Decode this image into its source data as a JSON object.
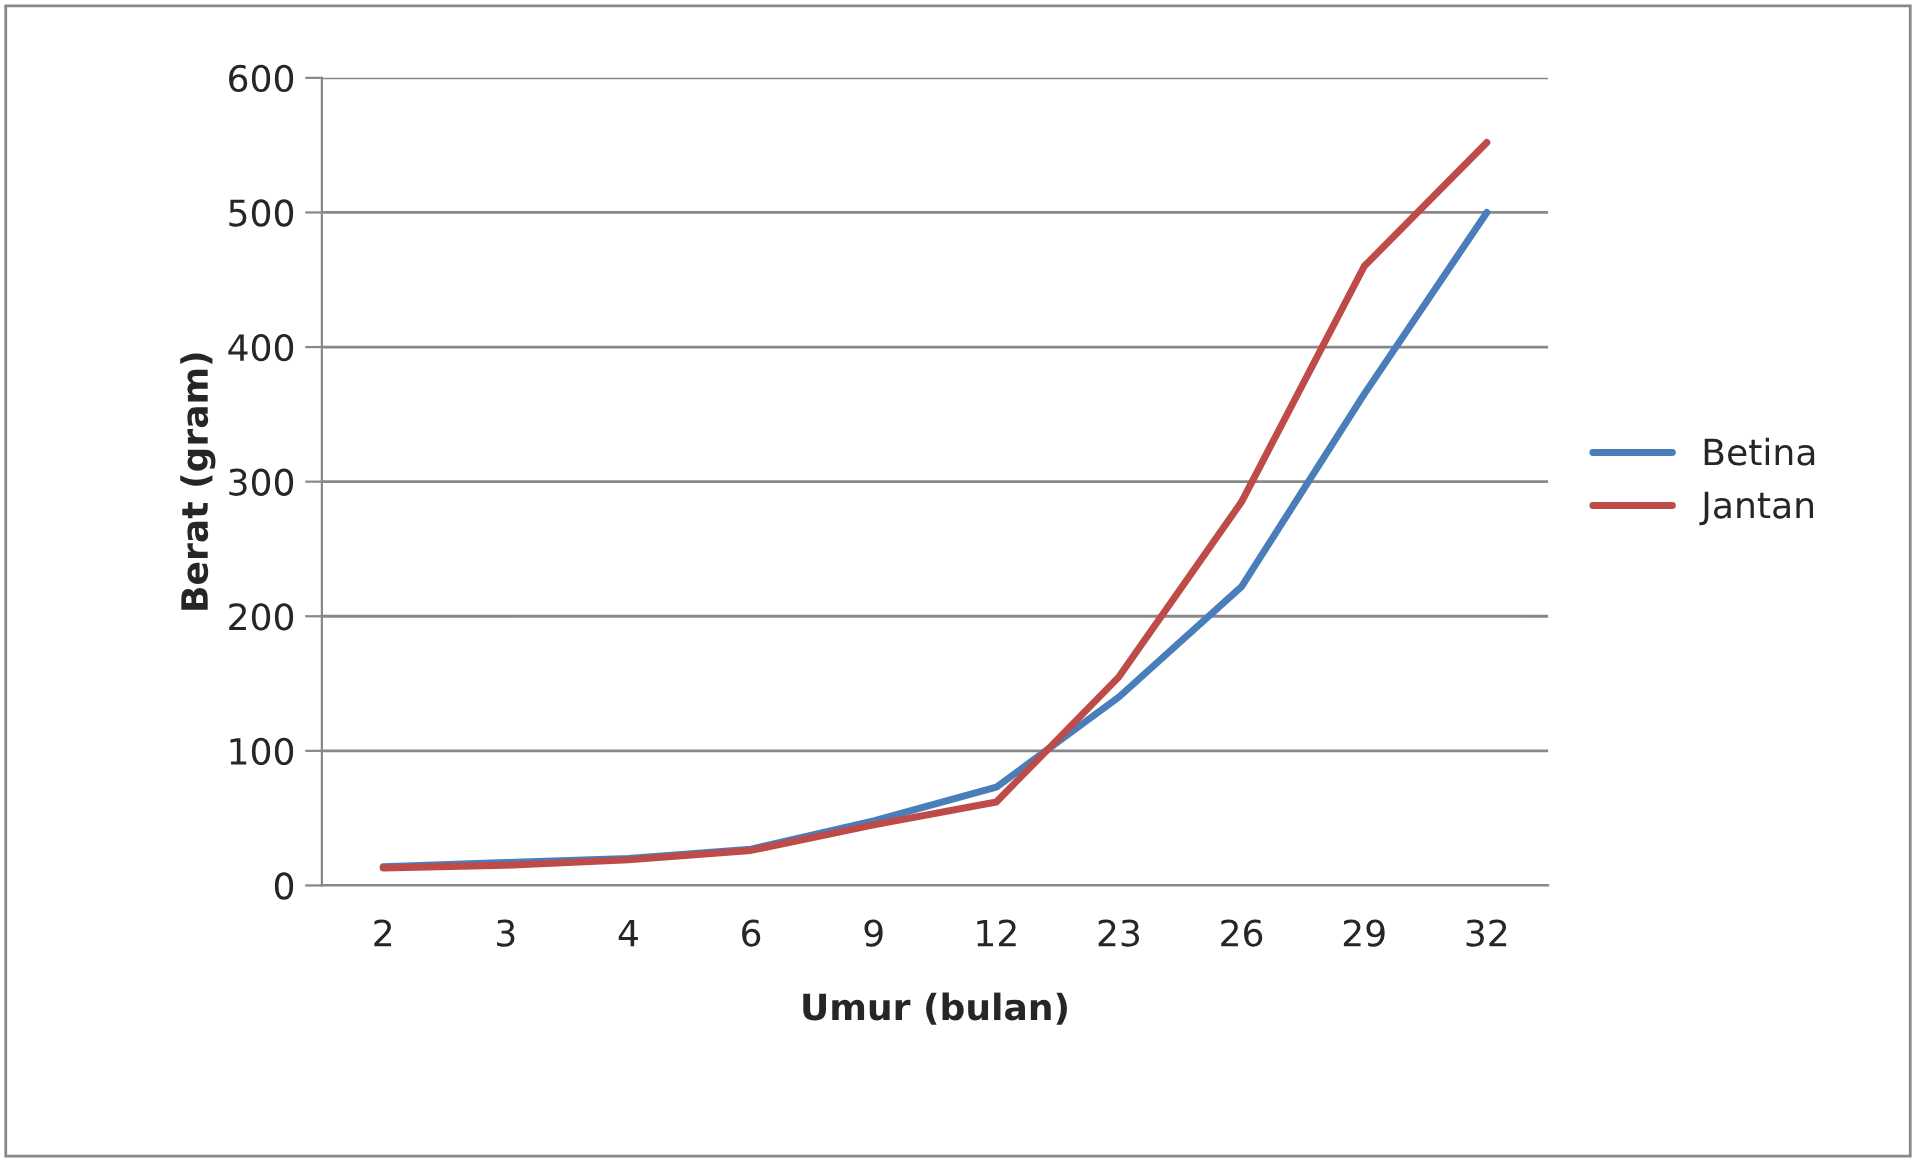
{
  "chart_data": {
    "type": "line",
    "xlabel": "Umur (bulan)",
    "ylabel": "Berat (gram)",
    "categories": [
      "2",
      "3",
      "4",
      "6",
      "9",
      "12",
      "23",
      "26",
      "29",
      "32"
    ],
    "series": [
      {
        "name": "Betina",
        "color": "#4a7ebb",
        "values": [
          14,
          17,
          20,
          27,
          48,
          73,
          140,
          222,
          365,
          500
        ]
      },
      {
        "name": "Jantan",
        "color": "#be4b48",
        "values": [
          13,
          15,
          19,
          26,
          45,
          62,
          155,
          285,
          460,
          552
        ]
      }
    ],
    "ylim": [
      0,
      600
    ],
    "yticks": [
      0,
      100,
      200,
      300,
      400,
      500,
      600
    ],
    "grid": "y",
    "legend": "right",
    "marker": "none",
    "line_style": "solid"
  }
}
